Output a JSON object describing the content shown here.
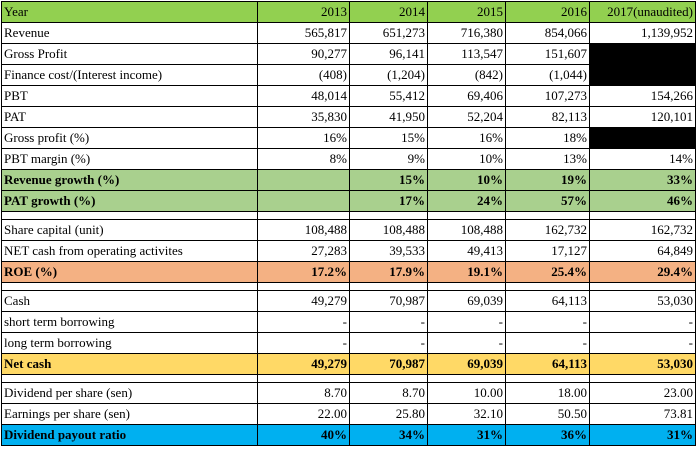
{
  "table": {
    "header": [
      "Year",
      "2013",
      "2014",
      "2015",
      "2016",
      "2017(unaudited)"
    ],
    "groups": [
      {
        "rows": [
          {
            "label": "Revenue",
            "values": [
              "565,817",
              "651,273",
              "716,380",
              "854,066",
              "1,139,952"
            ]
          },
          {
            "label": "Gross Profit",
            "values": [
              "90,277",
              "96,141",
              "113,547",
              "151,607",
              ""
            ],
            "blacked": [
              false,
              false,
              false,
              false,
              true
            ]
          },
          {
            "label": "Finance cost/(Interest income)",
            "values": [
              "(408)",
              "(1,204)",
              "(842)",
              "(1,044)",
              ""
            ],
            "blacked": [
              false,
              false,
              false,
              false,
              true
            ]
          },
          {
            "label": "PBT",
            "values": [
              "48,014",
              "55,412",
              "69,406",
              "107,273",
              "154,266"
            ]
          },
          {
            "label": "PAT",
            "values": [
              "35,830",
              "41,950",
              "52,204",
              "82,113",
              "120,101"
            ]
          },
          {
            "label": "Gross profit (%)",
            "values": [
              "16%",
              "15%",
              "16%",
              "18%",
              ""
            ],
            "blacked": [
              false,
              false,
              false,
              false,
              true
            ]
          },
          {
            "label": "PBT margin (%)",
            "values": [
              "8%",
              "9%",
              "10%",
              "13%",
              "14%"
            ]
          },
          {
            "label": "Revenue growth (%)",
            "values": [
              "",
              "15%",
              "10%",
              "19%",
              "33%"
            ],
            "style": "green"
          },
          {
            "label": "PAT growth (%)",
            "values": [
              "",
              "17%",
              "24%",
              "57%",
              "46%"
            ],
            "style": "green"
          }
        ]
      },
      {
        "rows": [
          {
            "label": "Share capital (unit)",
            "values": [
              "108,488",
              "108,488",
              "108,488",
              "162,732",
              "162,732"
            ]
          },
          {
            "label": "NET cash from operating activites",
            "values": [
              "27,283",
              "39,533",
              "49,413",
              "17,127",
              "64,849"
            ]
          },
          {
            "label": "ROE (%)",
            "values": [
              "17.2%",
              "17.9%",
              "19.1%",
              "25.4%",
              "29.4%"
            ],
            "style": "orange"
          }
        ]
      },
      {
        "rows": [
          {
            "label": "Cash",
            "values": [
              "49,279",
              "70,987",
              "69,039",
              "64,113",
              "53,030"
            ]
          },
          {
            "label": "short term borrowing",
            "values": [
              "-",
              "-",
              "-",
              "-",
              "-"
            ]
          },
          {
            "label": "long term borrowing",
            "values": [
              "-",
              "-",
              "-",
              "-",
              "-"
            ]
          },
          {
            "label": "Net cash",
            "values": [
              "49,279",
              "70,987",
              "69,039",
              "64,113",
              "53,030"
            ],
            "style": "yellow"
          }
        ]
      },
      {
        "rows": [
          {
            "label": "Dividend per share (sen)",
            "values": [
              "8.70",
              "8.70",
              "10.00",
              "18.00",
              "23.00"
            ]
          },
          {
            "label": "Earnings per share (sen)",
            "values": [
              "22.00",
              "25.80",
              "32.10",
              "50.50",
              "73.81"
            ]
          },
          {
            "label": "Dividend payout ratio",
            "values": [
              "40%",
              "34%",
              "31%",
              "36%",
              "31%"
            ],
            "style": "blue"
          }
        ]
      }
    ],
    "colors": {
      "header_green": "#92d050",
      "growth_green": "#a9d08e",
      "roe_orange": "#f4b183",
      "net_cash_yellow": "#ffd966",
      "payout_blue": "#00b0f0",
      "redacted_black": "#000000"
    }
  }
}
